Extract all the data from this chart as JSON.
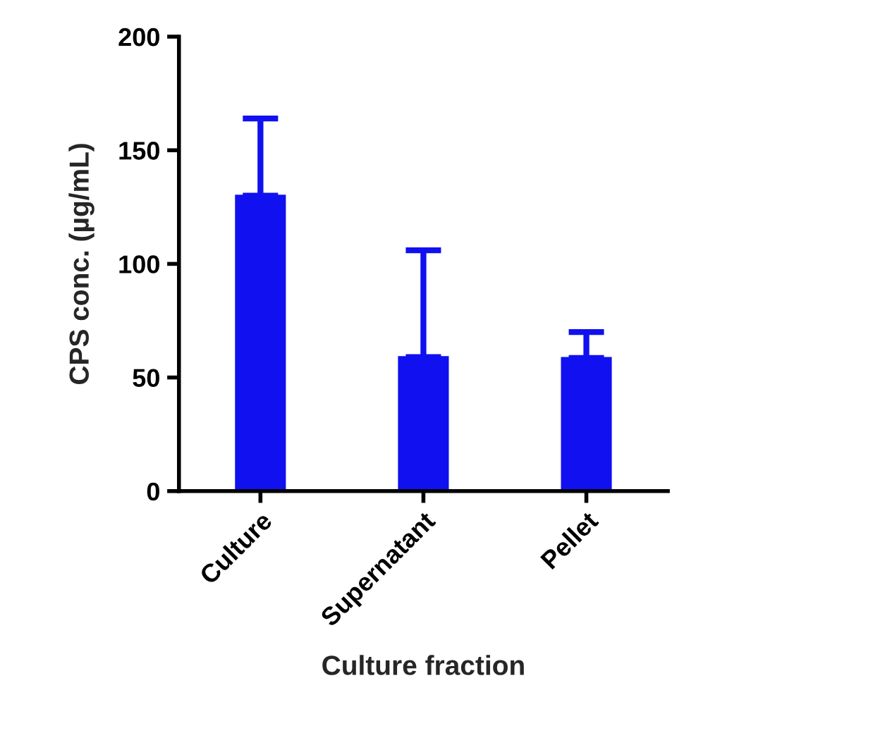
{
  "chart_data": {
    "type": "bar",
    "xlabel": "Culture fraction",
    "ylabel": "CPS conc. (µg/mL)",
    "categories": [
      "Culture",
      "Supernatant",
      "Pellet"
    ],
    "values": [
      130,
      59,
      58.6
    ],
    "errors": [
      [
        130,
        164
      ],
      [
        59,
        106
      ],
      [
        58.6,
        70
      ]
    ],
    "color": "#1010f0",
    "ylim": [
      0,
      200
    ],
    "yticks": [
      0,
      50,
      100,
      150,
      200
    ],
    "grid": false
  }
}
